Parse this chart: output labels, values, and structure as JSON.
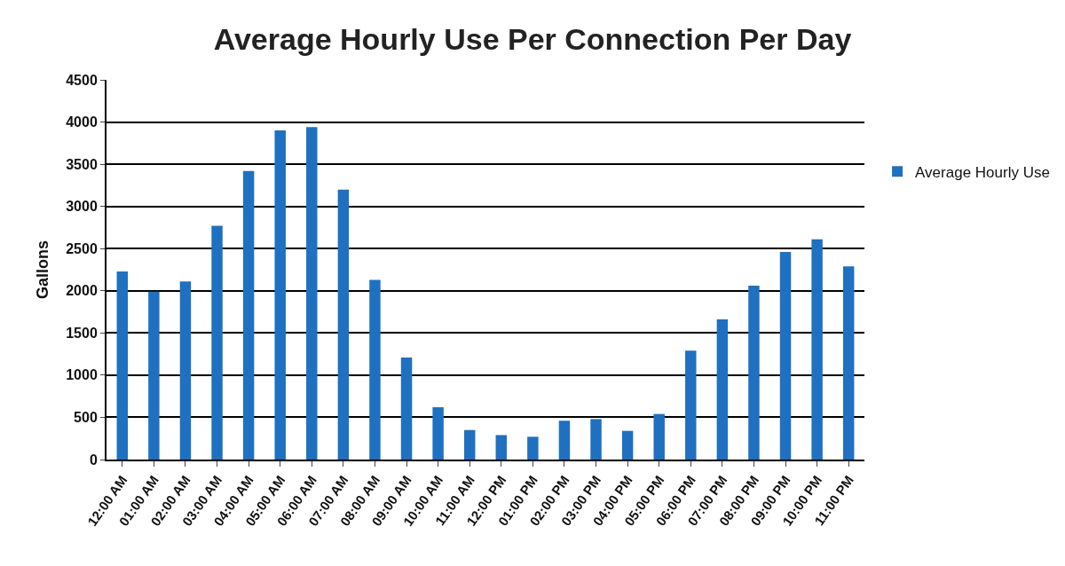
{
  "chart_data": {
    "type": "bar",
    "title": "Average Hourly Use Per Connection Per Day",
    "ylabel": "Gallons",
    "categories": [
      "12:00 AM",
      "01:00 AM",
      "02:00 AM",
      "03:00 AM",
      "04:00 AM",
      "05:00 AM",
      "06:00 AM",
      "07:00 AM",
      "08:00 AM",
      "09:00 AM",
      "10:00 AM",
      "11:00 AM",
      "12:00 PM",
      "01:00 PM",
      "02:00 PM",
      "03:00 PM",
      "04:00 PM",
      "05:00 PM",
      "06:00 PM",
      "07:00 PM",
      "08:00 PM",
      "09:00 PM",
      "10:00 PM",
      "11:00 PM"
    ],
    "series": [
      {
        "name": "Average Hourly Use",
        "color": "#1f70c1",
        "values": [
          2230,
          1990,
          2110,
          2770,
          3420,
          3900,
          3940,
          3200,
          2130,
          1210,
          620,
          350,
          290,
          270,
          460,
          480,
          340,
          540,
          1290,
          1660,
          2060,
          2460,
          2610,
          2290
        ]
      }
    ],
    "ylim": [
      0,
      4500
    ],
    "yticks": [
      0,
      500,
      1000,
      1500,
      2000,
      2500,
      3000,
      3500,
      4000,
      4500
    ],
    "grid": "y",
    "legend": "right"
  }
}
